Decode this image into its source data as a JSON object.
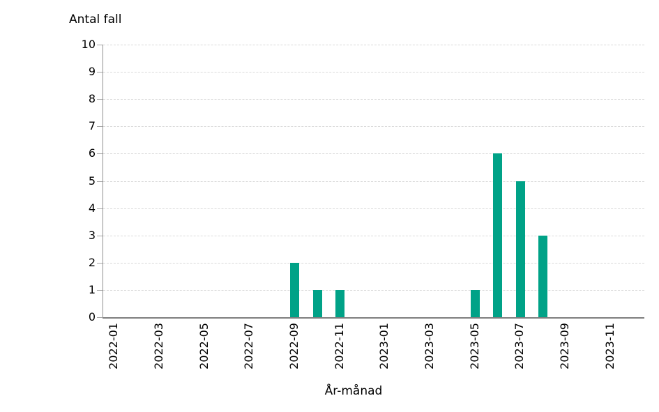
{
  "chart_data": {
    "type": "bar",
    "title": "Antal fall",
    "xlabel": "År-månad",
    "ylim": [
      0,
      10
    ],
    "yticks": [
      0,
      1,
      2,
      3,
      4,
      5,
      6,
      7,
      8,
      9,
      10
    ],
    "grid": "horizontal-dashed",
    "legend": "none",
    "bar_color": "#00a287",
    "gridline_color": "#d9d9d9",
    "axis_color": "#7f7f7f",
    "tick_color": "#a6a6a6",
    "categories": [
      "2022-01",
      "2022-02",
      "2022-03",
      "2022-04",
      "2022-05",
      "2022-06",
      "2022-07",
      "2022-08",
      "2022-09",
      "2022-10",
      "2022-11",
      "2022-12",
      "2023-01",
      "2023-02",
      "2023-03",
      "2023-04",
      "2023-05",
      "2023-06",
      "2023-07",
      "2023-08",
      "2023-09",
      "2023-10",
      "2023-11",
      "2023-12"
    ],
    "values": [
      0,
      0,
      0,
      0,
      0,
      0,
      0,
      0,
      2,
      1,
      1,
      0,
      0,
      0,
      0,
      0,
      1,
      6,
      5,
      3,
      0,
      0,
      0,
      0
    ],
    "xtick_labels": [
      "2022-01",
      "2022-03",
      "2022-05",
      "2022-07",
      "2022-09",
      "2022-11",
      "2023-01",
      "2023-03",
      "2023-05",
      "2023-07",
      "2023-09",
      "2023-11"
    ],
    "xtick_positions": [
      0,
      2,
      4,
      6,
      8,
      10,
      12,
      14,
      16,
      18,
      20,
      22
    ]
  }
}
